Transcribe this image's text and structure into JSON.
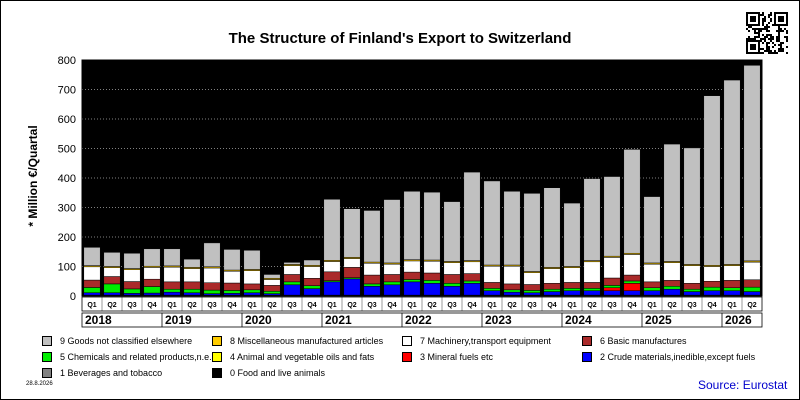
{
  "title": "The Structure of Finland's Export to Switzerland",
  "ylabel": "* Million €/Quartal",
  "date": "28.8.2026",
  "source": "Source: Eurostat",
  "qr_icon": "qr-code-icon",
  "chart_data": {
    "type": "bar",
    "stacked": true,
    "ylim": [
      0,
      800
    ],
    "yticks": [
      0,
      100,
      200,
      300,
      400,
      500,
      600,
      700,
      800
    ],
    "grid": true,
    "legend_position": "bottom",
    "plot_background": "#000000",
    "categories": [
      "Q1",
      "Q2",
      "Q3",
      "Q4",
      "Q1",
      "Q2",
      "Q3",
      "Q4",
      "Q1",
      "Q2",
      "Q3",
      "Q4",
      "Q1",
      "Q2",
      "Q3",
      "Q4",
      "Q1",
      "Q2",
      "Q3",
      "Q4",
      "Q1",
      "Q2",
      "Q3",
      "Q4",
      "Q1",
      "Q2",
      "Q3",
      "Q4",
      "Q1",
      "Q2",
      "Q3",
      "Q4",
      "Q1",
      "Q2"
    ],
    "years": [
      "2018",
      "2019",
      "2020",
      "2021",
      "2022",
      "2023",
      "2024",
      "2025",
      "2026"
    ],
    "series": [
      {
        "name": "0 Food and live animals",
        "color": "#000000",
        "values": [
          2,
          2,
          2,
          2,
          2,
          2,
          2,
          2,
          2,
          2,
          2,
          2,
          2,
          2,
          2,
          2,
          2,
          2,
          2,
          2,
          2,
          2,
          2,
          2,
          2,
          2,
          2,
          2,
          2,
          2,
          2,
          2,
          2,
          2
        ]
      },
      {
        "name": "1 Beverages and tobacco",
        "color": "#808080",
        "values": [
          1,
          1,
          1,
          1,
          1,
          1,
          1,
          1,
          1,
          1,
          1,
          1,
          1,
          1,
          1,
          1,
          1,
          1,
          1,
          1,
          1,
          1,
          1,
          1,
          1,
          1,
          1,
          1,
          1,
          1,
          1,
          1,
          1,
          1
        ]
      },
      {
        "name": "2 Crude materials,inedible,except fuels",
        "color": "#0000ff",
        "values": [
          8,
          8,
          6,
          7,
          10,
          8,
          5,
          6,
          8,
          5,
          35,
          22,
          45,
          55,
          30,
          35,
          45,
          40,
          30,
          40,
          15,
          10,
          8,
          12,
          15,
          15,
          15,
          15,
          15,
          20,
          12,
          15,
          15,
          12
        ]
      },
      {
        "name": "3 Mineral fuels etc",
        "color": "#ff0000",
        "values": [
          0,
          0,
          0,
          0,
          0,
          0,
          0,
          0,
          0,
          0,
          0,
          0,
          0,
          0,
          0,
          0,
          0,
          0,
          0,
          0,
          0,
          0,
          0,
          0,
          0,
          0,
          10,
          25,
          0,
          0,
          0,
          0,
          0,
          0
        ]
      },
      {
        "name": "4 Animal and vegetable oils and fats",
        "color": "#ffff00",
        "values": [
          0,
          0,
          0,
          0,
          0,
          0,
          0,
          0,
          0,
          0,
          0,
          0,
          0,
          0,
          0,
          0,
          0,
          0,
          0,
          0,
          0,
          0,
          0,
          0,
          0,
          0,
          0,
          0,
          0,
          0,
          0,
          0,
          0,
          0
        ]
      },
      {
        "name": "5 Chemicals and related products,n.e.s.",
        "color": "#00ee00",
        "values": [
          18,
          30,
          15,
          22,
          10,
          12,
          12,
          10,
          10,
          8,
          10,
          10,
          4,
          4,
          8,
          10,
          8,
          10,
          10,
          8,
          8,
          8,
          8,
          8,
          8,
          8,
          8,
          8,
          10,
          10,
          8,
          12,
          10,
          15
        ]
      },
      {
        "name": "6 Basic manufactures",
        "color": "#aa2a2a",
        "values": [
          25,
          25,
          25,
          25,
          25,
          25,
          25,
          25,
          20,
          20,
          25,
          25,
          30,
          35,
          30,
          25,
          25,
          25,
          30,
          25,
          20,
          20,
          20,
          20,
          20,
          20,
          25,
          20,
          20,
          20,
          20,
          20,
          25,
          25
        ]
      },
      {
        "name": "7 Machinery,transport equipment",
        "color": "#ffffff",
        "values": [
          45,
          30,
          40,
          40,
          50,
          45,
          50,
          40,
          45,
          20,
          30,
          40,
          35,
          30,
          40,
          35,
          38,
          40,
          40,
          40,
          55,
          60,
          40,
          50,
          50,
          70,
          70,
          70,
          60,
          60,
          60,
          50,
          50,
          60
        ]
      },
      {
        "name": "8 Miscellaneous manufactured articles",
        "color": "#ffcc00",
        "values": [
          4,
          4,
          4,
          4,
          4,
          4,
          4,
          4,
          4,
          4,
          4,
          4,
          4,
          4,
          4,
          4,
          4,
          4,
          4,
          4,
          4,
          4,
          4,
          4,
          4,
          4,
          4,
          4,
          4,
          4,
          4,
          4,
          4,
          4
        ]
      },
      {
        "name": "9 Goods not classified elsewhere",
        "color": "#c0c0c0",
        "values": [
          62,
          48,
          52,
          59,
          58,
          28,
          81,
          70,
          65,
          13,
          7,
          18,
          207,
          165,
          175,
          215,
          232,
          230,
          203,
          300,
          285,
          250,
          265,
          270,
          215,
          278,
          270,
          352,
          225,
          398,
          395,
          575,
          625,
          663
        ]
      }
    ]
  }
}
